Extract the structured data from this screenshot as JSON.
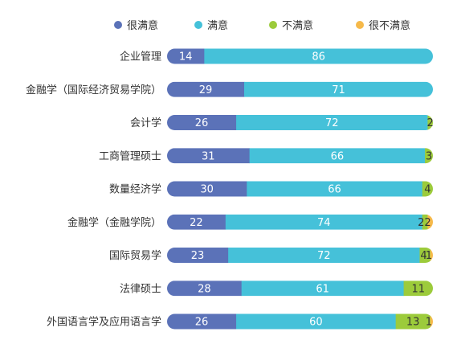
{
  "chart_data": {
    "type": "bar",
    "orientation": "horizontal",
    "stacked": true,
    "title": "",
    "xlabel": "",
    "ylabel": "",
    "xlim": [
      0,
      100
    ],
    "legend_position": "top",
    "grid": false,
    "categories": [
      "企业管理",
      "金融学（国际经济贸易学院）",
      "会计学",
      "工商管理硕士",
      "数量经济学",
      "金融学（金融学院）",
      "国际贸易学",
      "法律硕士",
      "外国语言学及应用语言学"
    ],
    "series": [
      {
        "name": "很满意",
        "color": "#5b72b8",
        "values": [
          14,
          29,
          26,
          31,
          30,
          22,
          23,
          28,
          26
        ]
      },
      {
        "name": "满意",
        "color": "#45c1d9",
        "values": [
          86,
          71,
          72,
          66,
          66,
          74,
          72,
          61,
          60
        ]
      },
      {
        "name": "不满意",
        "color": "#9ccb3b",
        "values": [
          0,
          0,
          2,
          3,
          4,
          2,
          4,
          11,
          13
        ]
      },
      {
        "name": "很不满意",
        "color": "#f6b94a",
        "values": [
          0,
          0,
          0,
          0,
          0,
          2,
          1,
          0,
          1
        ]
      }
    ]
  }
}
